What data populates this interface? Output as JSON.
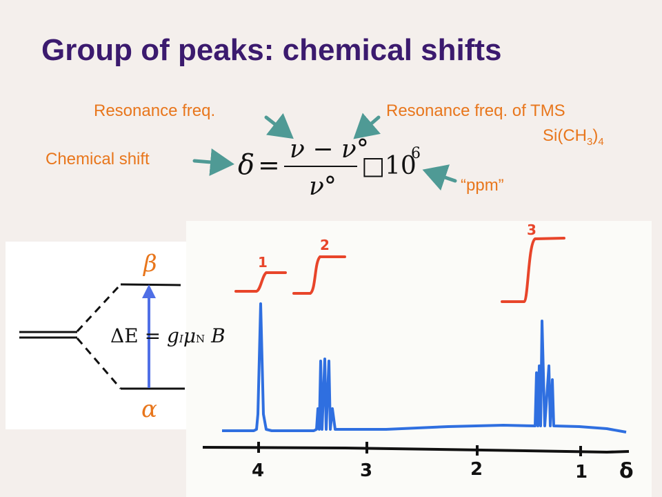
{
  "title": "Group of peaks: chemical shifts",
  "labels": {
    "resonance_freq": "Resonance freq.",
    "resonance_freq_tms": "Resonance freq. of TMS",
    "tms_formula_prefix": "Si(CH",
    "tms_formula_sub": "3",
    "tms_formula_close": ")",
    "tms_formula_sub2": "4",
    "chemical_shift": "Chemical shift",
    "ppm": "“ppm”"
  },
  "formula": {
    "lhs": "δ",
    "equals": "=",
    "numerator": "ν − ν°",
    "denominator": "ν°",
    "multiplier": "□10",
    "exponent": "6"
  },
  "energy_diagram": {
    "upper_state": "β",
    "lower_state": "α",
    "equation": {
      "delta_e": "ΔE",
      "equals": "=",
      "g": "g",
      "g_sub": "I",
      "mu": "μ",
      "mu_sub": "N",
      "field": "B"
    }
  },
  "spectrum": {
    "axis_ticks": [
      "4",
      "3",
      "2",
      "1"
    ],
    "axis_symbol": "δ",
    "peak_groups": [
      "1",
      "2",
      "3"
    ]
  },
  "colors": {
    "title": "#3b1a6e",
    "labels": "#e8761c",
    "arrows": "#4f9a95",
    "spectrum": "#2f6fe0",
    "integrals": "#e8452a"
  }
}
